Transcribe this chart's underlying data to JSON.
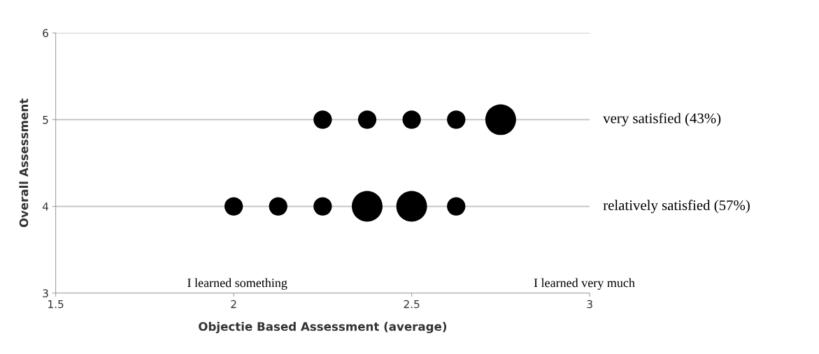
{
  "chart_data": {
    "type": "bubble",
    "xlabel": "Objectie Based Assessment (average)",
    "ylabel": "Overall Assessment",
    "xlim": [
      1.5,
      3
    ],
    "xticks": [
      1.5,
      2,
      2.5,
      3
    ],
    "ylim": [
      3,
      6
    ],
    "yticks": [
      3,
      4,
      5,
      6
    ],
    "grid": "y",
    "series": [
      {
        "color": "#000000",
        "x": [
          2.25,
          2.375,
          2.5,
          2.625,
          2.75
        ],
        "values": [
          5,
          5,
          5,
          5,
          5
        ],
        "sizes": [
          0.36,
          0.36,
          0.36,
          0.36,
          1
        ]
      },
      {
        "color": "#000000",
        "x": [
          2,
          2.125,
          2.25,
          2.375,
          2.5,
          2.625
        ],
        "values": [
          4,
          4,
          4,
          4,
          4,
          4
        ],
        "sizes": [
          0.36,
          0.36,
          0.36,
          1,
          1,
          0.36
        ]
      }
    ],
    "annotations": [
      "very satisfied (43%)",
      "relatively satisfied (57%)",
      "I learned something",
      "I learned very much"
    ]
  }
}
